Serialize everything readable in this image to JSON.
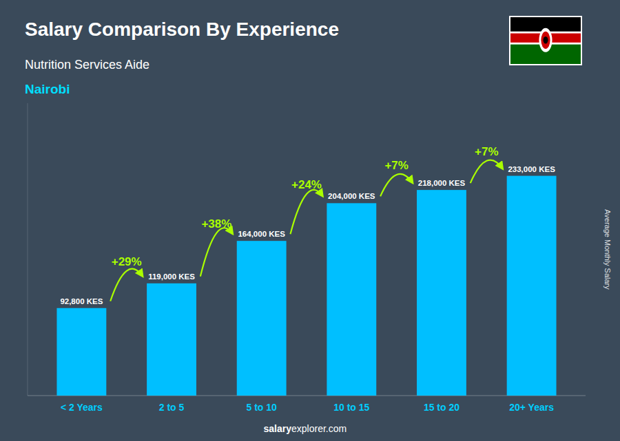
{
  "chart_data": {
    "type": "bar",
    "title": "Salary Comparison By Experience",
    "subtitle": "Nutrition Services Aide",
    "city": "Nairobi",
    "ylabel": "Average Monthly Salary",
    "categories": [
      "< 2 Years",
      "2 to 5",
      "5 to 10",
      "10 to 15",
      "15 to 20",
      "20+ Years"
    ],
    "values": [
      92800,
      119000,
      164000,
      204000,
      218000,
      233000
    ],
    "value_labels": [
      "92,800 KES",
      "119,000 KES",
      "164,000 KES",
      "204,000 KES",
      "218,000 KES",
      "233,000 KES"
    ],
    "data_labels": true,
    "pct_changes": [
      "+29%",
      "+38%",
      "+24%",
      "+7%",
      "+7%"
    ],
    "watermark": {
      "bold": "salary",
      "normal": "explorer.com"
    },
    "color": "#00BFFF",
    "ylim": [
      0,
      310000
    ],
    "tick_labels": "x",
    "grid": false
  }
}
